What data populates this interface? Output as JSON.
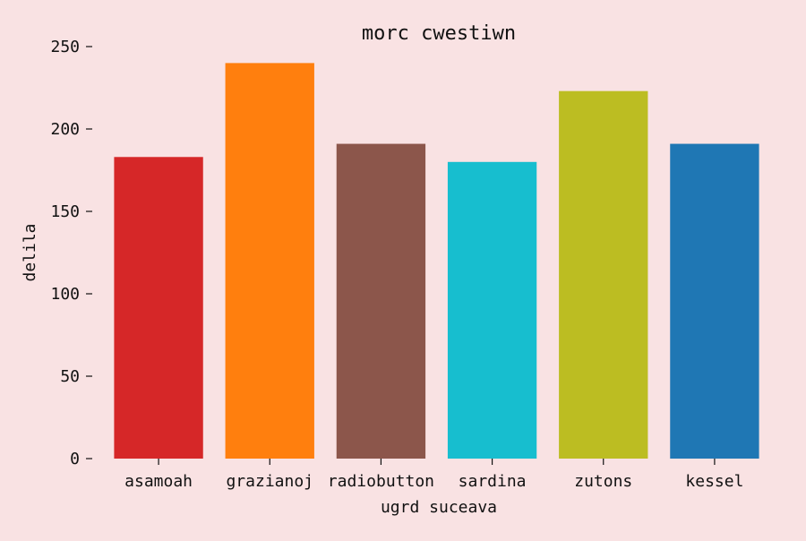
{
  "chart_data": {
    "type": "bar",
    "title": "morc cwestiwn",
    "xlabel": "ugrd suceava",
    "ylabel": "delila",
    "categories": [
      "asamoah",
      "grazianoj",
      "radiobutton",
      "sardina",
      "zutons",
      "kessel"
    ],
    "values": [
      183,
      240,
      191,
      180,
      223,
      191
    ],
    "colors": [
      "#d62728",
      "#ff7f0e",
      "#8c564b",
      "#17becf",
      "#bcbd22",
      "#1f77b4"
    ],
    "ylim": [
      0,
      250
    ],
    "yticks": [
      0,
      50,
      100,
      150,
      200,
      250
    ],
    "grid": false,
    "legend": "none"
  }
}
